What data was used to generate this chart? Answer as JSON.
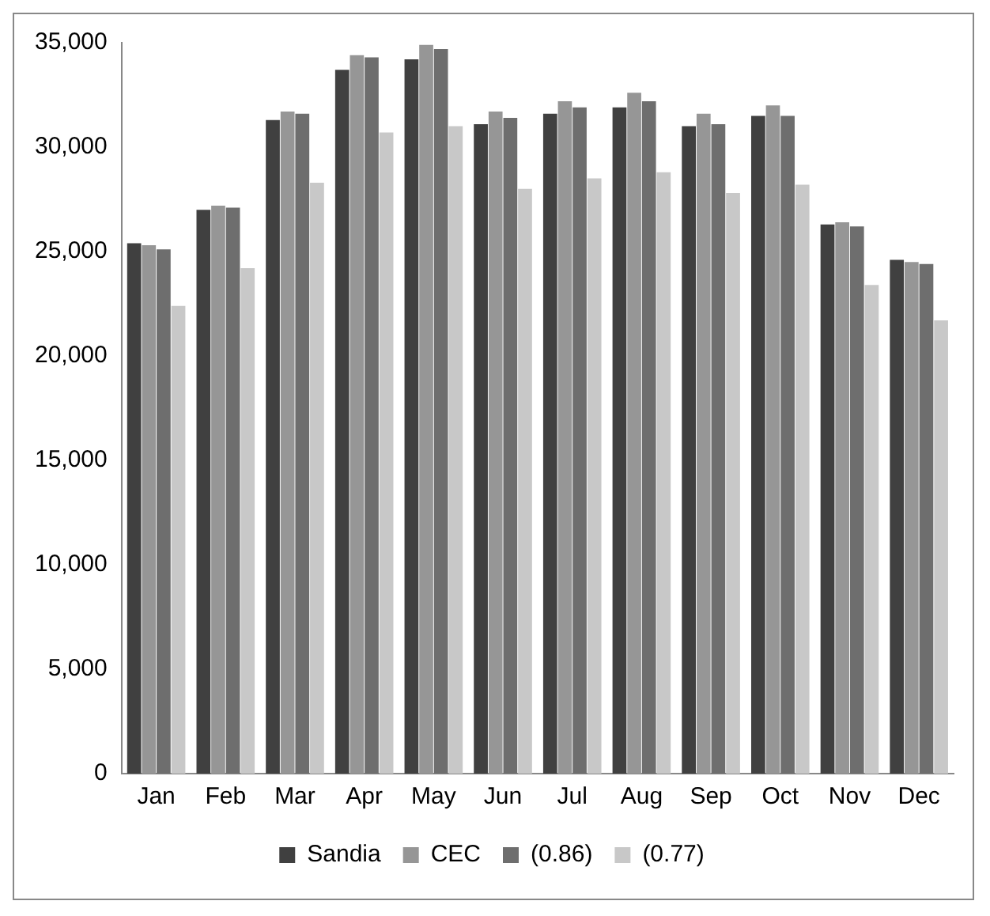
{
  "chart_data": {
    "type": "bar",
    "categories": [
      "Jan",
      "Feb",
      "Mar",
      "Apr",
      "May",
      "Jun",
      "Jul",
      "Aug",
      "Sep",
      "Oct",
      "Nov",
      "Dec"
    ],
    "series": [
      {
        "name": "Sandia",
        "color": "#404040",
        "values": [
          25400,
          27000,
          31300,
          33700,
          34200,
          31100,
          31600,
          31900,
          31000,
          31500,
          26300,
          24600
        ]
      },
      {
        "name": "CEC",
        "color": "#969696",
        "values": [
          25300,
          27200,
          31700,
          34400,
          34900,
          31700,
          32200,
          32600,
          31600,
          32000,
          26400,
          24500
        ]
      },
      {
        "name": "(0.86)",
        "color": "#6e6e6e",
        "values": [
          25100,
          27100,
          31600,
          34300,
          34700,
          31400,
          31900,
          32200,
          31100,
          31500,
          26200,
          24400
        ]
      },
      {
        "name": "(0.77)",
        "color": "#c8c8c8",
        "values": [
          22400,
          24200,
          28300,
          30700,
          31000,
          28000,
          28500,
          28800,
          27800,
          28200,
          23400,
          21700
        ]
      }
    ],
    "ylim": [
      0,
      35000
    ],
    "yticks": [
      0,
      {
        "value": 5000,
        "label": "5,000"
      },
      {
        "value": 10000,
        "label": "10,000"
      },
      {
        "value": 15000,
        "label": "15,000"
      },
      {
        "value": 20000,
        "label": "20,000"
      },
      {
        "value": 25000,
        "label": "25,000"
      },
      {
        "value": 30000,
        "label": "30,000"
      },
      {
        "value": 35000,
        "label": "35,000"
      }
    ],
    "grid": false,
    "legend": "bottom"
  }
}
